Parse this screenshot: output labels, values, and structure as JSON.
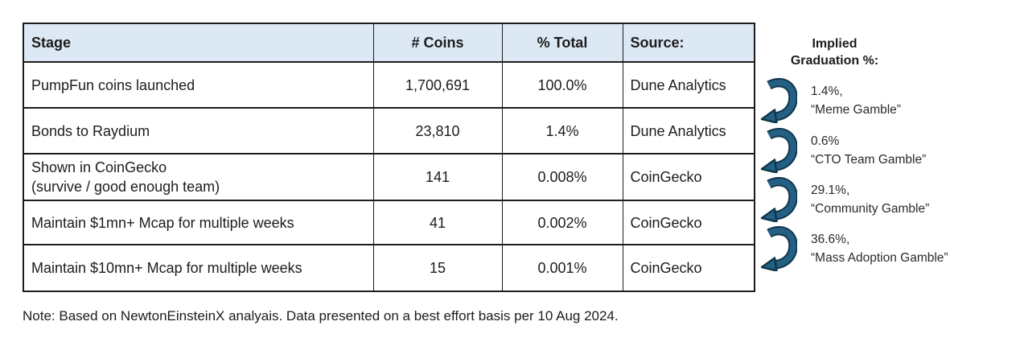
{
  "table": {
    "headers": [
      "Stage",
      "# Coins",
      "% Total",
      "Source:"
    ],
    "rows": [
      {
        "stage": "PumpFun coins launched",
        "coins": "1,700,691",
        "pct": "100.0%",
        "source": "Dune Analytics"
      },
      {
        "stage": "Bonds to Raydium",
        "coins": "23,810",
        "pct": "1.4%",
        "source": "Dune Analytics"
      },
      {
        "stage": "Shown in CoinGecko\n(survive / good enough team)",
        "coins": "141",
        "pct": "0.008%",
        "source": "CoinGecko"
      },
      {
        "stage": "Maintain $1mn+ Mcap for multiple weeks",
        "coins": "41",
        "pct": "0.002%",
        "source": "CoinGecko"
      },
      {
        "stage": "Maintain $10mn+ Mcap for multiple weeks",
        "coins": "15",
        "pct": "0.001%",
        "source": "CoinGecko"
      }
    ]
  },
  "annotations": {
    "title_line1": "Implied",
    "title_line2": "Graduation %:",
    "items": [
      {
        "pct": "1.4%,",
        "label": "“Meme Gamble”"
      },
      {
        "pct": "0.6%",
        "label": "“CTO Team Gamble”"
      },
      {
        "pct": "29.1%,",
        "label": "“Community Gamble”"
      },
      {
        "pct": "36.6%,",
        "label": "“Mass Adoption Gamble”"
      }
    ]
  },
  "note": "Note: Based on NewtonEinsteinX analyais. Data presented on a best effort basis per 10 Aug 2024.",
  "colors": {
    "header_bg": "#DCE9F5",
    "border": "#1c1c1c",
    "arrow_fill": "#236083",
    "arrow_outline": "#11374D"
  }
}
